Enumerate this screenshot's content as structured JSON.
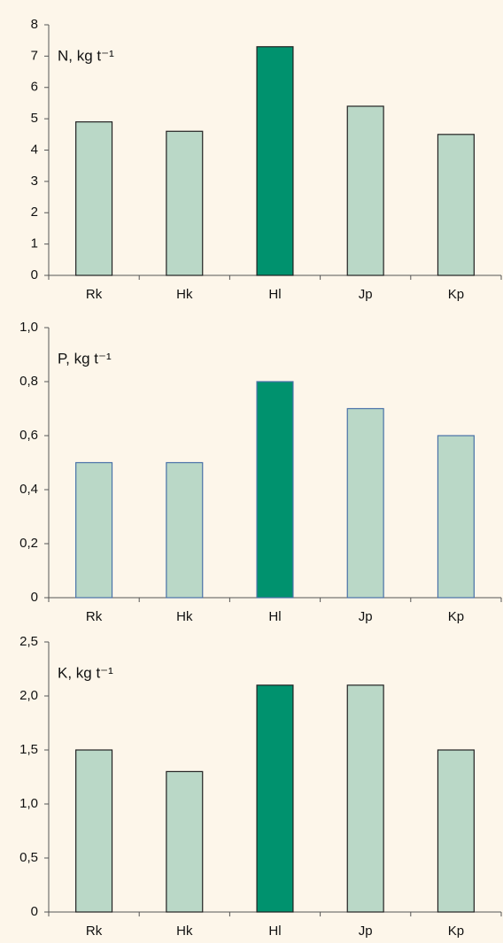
{
  "chart_data": [
    {
      "type": "bar",
      "title": "N, kg t⁻¹",
      "categories": [
        "Rk",
        "Hk",
        "Hl",
        "Jp",
        "Kp"
      ],
      "values": [
        4.9,
        4.6,
        7.3,
        5.4,
        4.5
      ],
      "colors": [
        "#bad8c7",
        "#bad8c7",
        "#00926e",
        "#bad8c7",
        "#bad8c7"
      ],
      "edgecolor": "#222222",
      "ylim": [
        0,
        8
      ],
      "yticks": [
        0,
        1,
        2,
        3,
        4,
        5,
        6,
        7,
        8
      ],
      "grid": false
    },
    {
      "type": "bar",
      "title": "P, kg t⁻¹",
      "categories": [
        "Rk",
        "Hk",
        "Hl",
        "Jp",
        "Kp"
      ],
      "values": [
        0.5,
        0.5,
        0.8,
        0.7,
        0.6
      ],
      "colors": [
        "#bad8c7",
        "#bad8c7",
        "#00926e",
        "#bad8c7",
        "#bad8c7"
      ],
      "edgecolor": "#4a72a8",
      "ylim": [
        0,
        1
      ],
      "yticks": [
        0,
        {
          "value": 0.2,
          "label": "0,2"
        },
        {
          "value": 0.4,
          "label": "0,4"
        },
        {
          "value": 0.6,
          "label": "0,6"
        },
        {
          "value": 0.8,
          "label": "0,8"
        },
        {
          "value": 1,
          "label": "1,0"
        }
      ],
      "grid": false
    },
    {
      "type": "bar",
      "title": "K, kg t⁻¹",
      "categories": [
        "Rk",
        "Hk",
        "Hl",
        "Jp",
        "Kp"
      ],
      "values": [
        1.5,
        1.3,
        2.1,
        2.1,
        1.5
      ],
      "colors": [
        "#bad8c7",
        "#bad8c7",
        "#00926e",
        "#bad8c7",
        "#bad8c7"
      ],
      "edgecolor": "#222222",
      "ylim": [
        0,
        2.5
      ],
      "yticks": [
        0,
        {
          "value": 0.5,
          "label": "0,5"
        },
        {
          "value": 1,
          "label": "1,0"
        },
        {
          "value": 1.5,
          "label": "1,5"
        },
        {
          "value": 2,
          "label": "2,0"
        },
        {
          "value": 2.5,
          "label": "2,5"
        }
      ],
      "grid": false
    }
  ]
}
